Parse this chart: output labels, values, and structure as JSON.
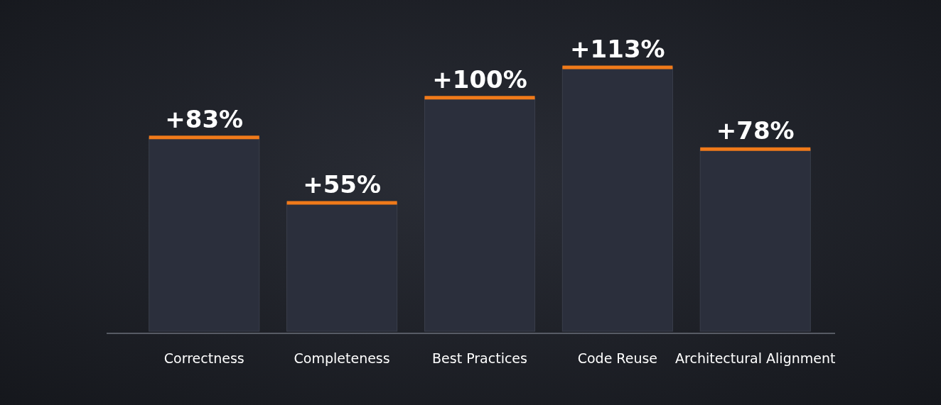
{
  "chart_data": {
    "type": "bar",
    "categories": [
      "Correctness",
      "Completeness",
      "Best Practices",
      "Code Reuse",
      "Architectural Alignment"
    ],
    "values": [
      83,
      55,
      100,
      113,
      78
    ],
    "value_labels": [
      "+83%",
      "+55%",
      "+100%",
      "+113%",
      "+78%"
    ],
    "color": "#2b2f3c"
  }
}
